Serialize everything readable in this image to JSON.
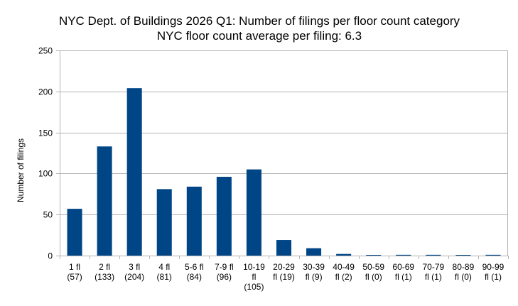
{
  "chart_data": {
    "type": "bar",
    "title": "NYC Dept. of Buildings 2026 Q1: Number of filings per floor count category",
    "subtitle": "NYC floor count average per filing: 6.3",
    "xlabel": "",
    "ylabel": "Number of filings",
    "ylim": [
      0,
      250
    ],
    "yticks": [
      0,
      50,
      100,
      150,
      200,
      250
    ],
    "grid": true,
    "legend": "none",
    "bar_color": "#004586",
    "grid_color": "#b3b3b3",
    "categories": [
      [
        "1 fl",
        "(57)"
      ],
      [
        "2 fl",
        "(133)"
      ],
      [
        "3 fl",
        "(204)"
      ],
      [
        "4 fl",
        "(81)"
      ],
      [
        "5-6 fl",
        "(84)"
      ],
      [
        "7-9 fl",
        "(96)"
      ],
      [
        "10-19",
        "fl",
        "(105)"
      ],
      [
        "20-29",
        "fl (19)"
      ],
      [
        "30-39",
        "fl (9)"
      ],
      [
        "40-49",
        "fl (2)"
      ],
      [
        "50-59",
        "fl (0)"
      ],
      [
        "60-69",
        "fl (1)"
      ],
      [
        "70-79",
        "fl (1)"
      ],
      [
        "80-89",
        "fl (0)"
      ],
      [
        "90-99",
        "fl (1)"
      ]
    ],
    "values": [
      57,
      133,
      204,
      81,
      84,
      96,
      105,
      19,
      9,
      2,
      0,
      1,
      1,
      0,
      1
    ]
  }
}
